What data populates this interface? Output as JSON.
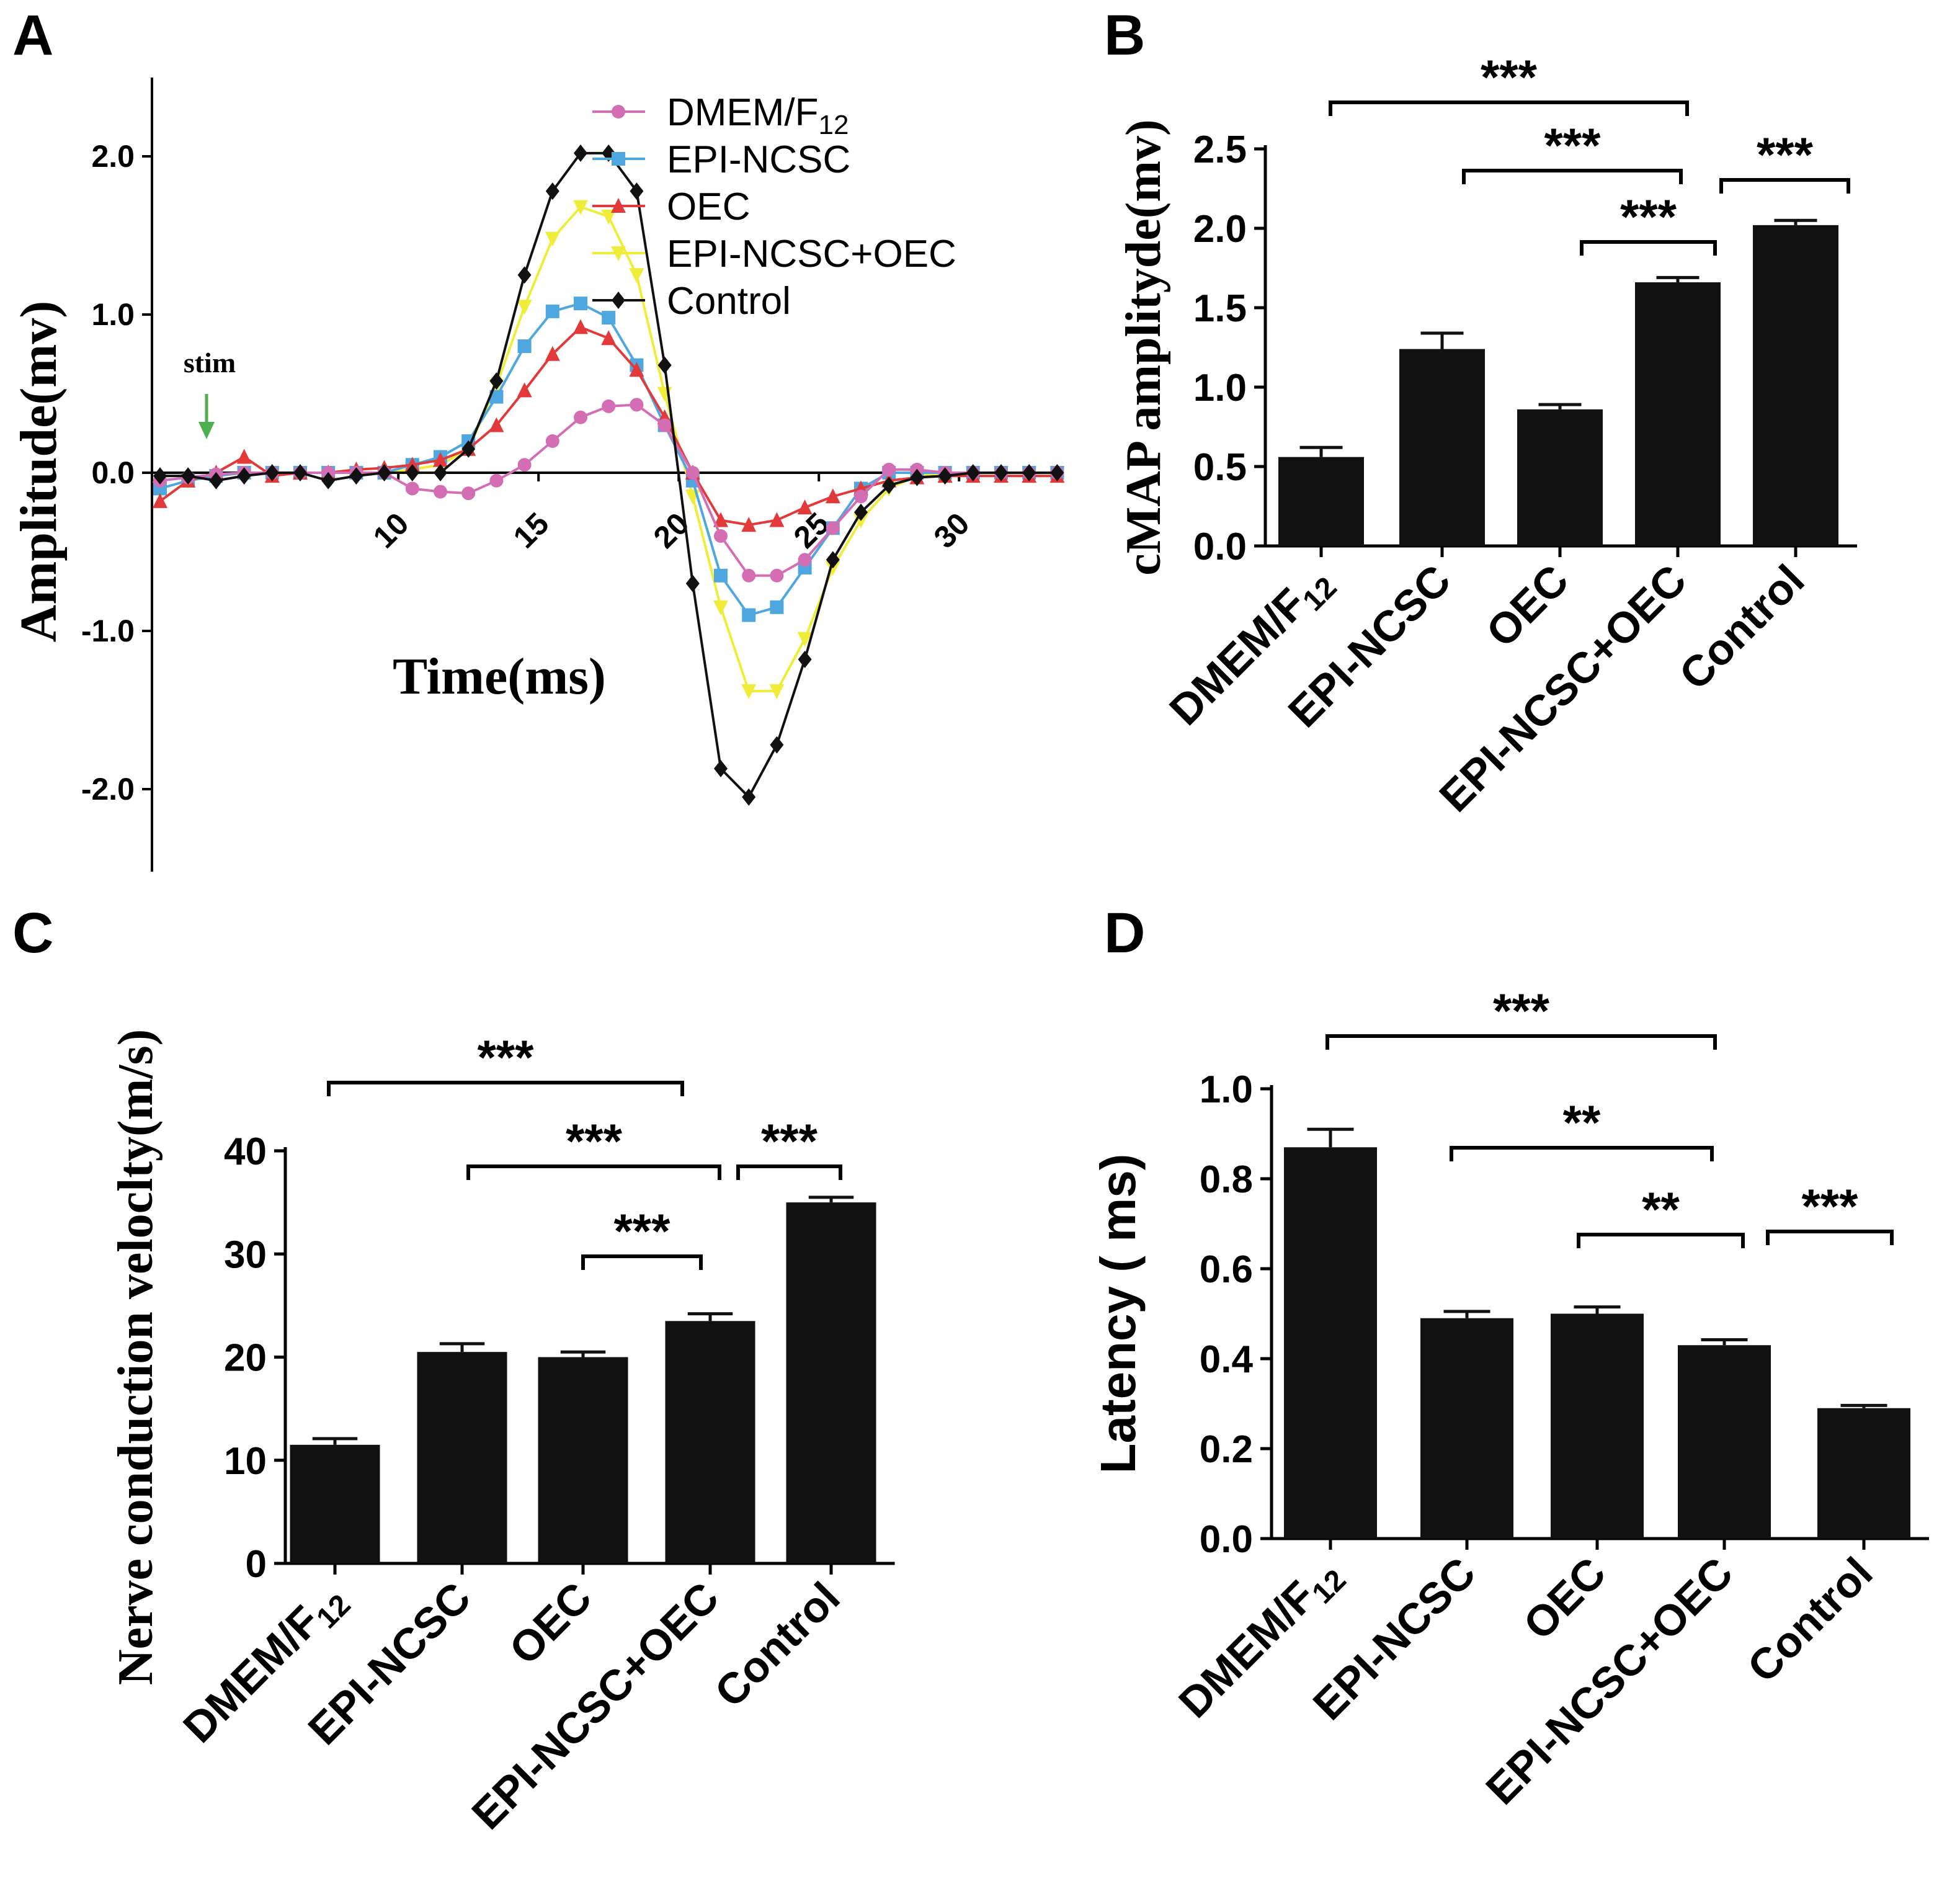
{
  "chart_data": [
    {
      "panel": "A",
      "type": "line",
      "xlabel": "Time(ms)",
      "ylabel": "Amplitude(mv)",
      "x_ticks": [
        "10",
        "15",
        "20",
        "25",
        "30"
      ],
      "y_ticks": [
        "2.0",
        "1.0",
        "0.0",
        "-1.0",
        "-2.0"
      ],
      "ylim": [
        -2.5,
        2.5
      ],
      "xlim": [
        1.5,
        34
      ],
      "annotation": "stim",
      "x": [
        1.5,
        2.5,
        3.5,
        4.5,
        5.5,
        6.5,
        7.5,
        8.5,
        9.5,
        10.5,
        11.5,
        12.5,
        13.5,
        14.5,
        15.5,
        16.5,
        17.5,
        18.5,
        19.5,
        20.5,
        21.5,
        22.5,
        23.5,
        24.5,
        25.5,
        26.5,
        27.5,
        28.5,
        29.5,
        30.5,
        31.5,
        32.5,
        33.5
      ],
      "series": [
        {
          "name": "DMEM/F",
          "sub": "12",
          "color": "#d46eb4",
          "marker": "circle",
          "values": [
            -0.05,
            -0.03,
            -0.01,
            0.0,
            0.0,
            0.0,
            0.0,
            0.0,
            0.0,
            -0.1,
            -0.12,
            -0.13,
            -0.05,
            0.05,
            0.2,
            0.35,
            0.42,
            0.43,
            0.3,
            0.0,
            -0.4,
            -0.65,
            -0.65,
            -0.55,
            -0.35,
            -0.15,
            0.02,
            0.02,
            0.0,
            0.0,
            0.0,
            0.0,
            0.0
          ]
        },
        {
          "name": "EPI-NCSC",
          "color": "#4ea8df",
          "marker": "square",
          "values": [
            -0.1,
            -0.05,
            -0.02,
            0.0,
            0.0,
            0.0,
            0.0,
            0.0,
            0.0,
            0.05,
            0.1,
            0.2,
            0.48,
            0.8,
            1.02,
            1.07,
            0.98,
            0.68,
            0.3,
            -0.05,
            -0.65,
            -0.9,
            -0.85,
            -0.6,
            -0.35,
            -0.1,
            0.0,
            0.0,
            0.0,
            0.0,
            0.0,
            0.0,
            0.0
          ]
        },
        {
          "name": "OEC",
          "color": "#e23a3a",
          "marker": "triangle",
          "values": [
            -0.18,
            -0.05,
            0.0,
            0.1,
            -0.02,
            0.0,
            0.0,
            0.02,
            0.03,
            0.05,
            0.08,
            0.15,
            0.3,
            0.52,
            0.75,
            0.92,
            0.85,
            0.65,
            0.35,
            0.0,
            -0.3,
            -0.33,
            -0.3,
            -0.22,
            -0.15,
            -0.1,
            -0.05,
            -0.03,
            -0.02,
            -0.02,
            -0.02,
            -0.02,
            -0.02
          ]
        },
        {
          "name": "EPI-NCSC+OEC",
          "color": "#f0ec3a",
          "marker": "triangle-down",
          "values": [
            -0.1,
            -0.05,
            -0.02,
            0.0,
            0.0,
            0.0,
            0.0,
            0.0,
            0.0,
            0.02,
            0.05,
            0.15,
            0.55,
            1.05,
            1.48,
            1.68,
            1.62,
            1.25,
            0.5,
            -0.15,
            -0.85,
            -1.38,
            -1.38,
            -1.05,
            -0.6,
            -0.3,
            -0.1,
            -0.02,
            0.0,
            0.0,
            0.0,
            0.0,
            0.0
          ]
        },
        {
          "name": "Control",
          "color": "#111111",
          "marker": "diamond",
          "values": [
            -0.02,
            -0.02,
            -0.05,
            -0.02,
            0.0,
            0.0,
            -0.05,
            -0.02,
            0.0,
            0.0,
            0.0,
            0.15,
            0.58,
            1.25,
            1.78,
            2.02,
            2.02,
            1.78,
            0.68,
            -0.7,
            -1.87,
            -2.05,
            -1.72,
            -1.18,
            -0.55,
            -0.25,
            -0.08,
            -0.03,
            -0.02,
            0.0,
            0.0,
            0.0,
            0.0
          ]
        }
      ]
    },
    {
      "panel": "B",
      "type": "bar",
      "ylabel": "cMAP amplityde(mv)",
      "categories": [
        "DMEM/F",
        "EPI-NCSC",
        "OEC",
        "EPI-NCSC+OEC",
        "Control"
      ],
      "category_sub": [
        "12",
        "",
        "",
        "",
        ""
      ],
      "values": [
        0.56,
        1.24,
        0.86,
        1.66,
        2.02
      ],
      "errors": [
        0.06,
        0.1,
        0.03,
        0.03,
        0.03
      ],
      "ylim": [
        0,
        2.5
      ],
      "y_ticks": [
        "0.0",
        "0.5",
        "1.0",
        "1.5",
        "2.0",
        "2.5"
      ],
      "significance": [
        {
          "from": 0,
          "to": 3,
          "label": "***"
        },
        {
          "from": 1,
          "to": 3,
          "label": "***"
        },
        {
          "from": 2,
          "to": 3,
          "label": "***"
        },
        {
          "from": 3,
          "to": 4,
          "label": "***"
        }
      ]
    },
    {
      "panel": "C",
      "type": "bar",
      "ylabel": "Nerve conduction veloclty(m/s)",
      "categories": [
        "DMEM/F",
        "EPI-NCSC",
        "OEC",
        "EPI-NCSC+OEC",
        "Control"
      ],
      "category_sub": [
        "12",
        "",
        "",
        "",
        ""
      ],
      "values": [
        11.5,
        20.5,
        20.0,
        23.5,
        35.0
      ],
      "errors": [
        0.6,
        0.8,
        0.5,
        0.7,
        0.5
      ],
      "ylim": [
        0,
        40
      ],
      "y_ticks": [
        "0",
        "10",
        "20",
        "30",
        "40"
      ],
      "significance": [
        {
          "from": 0,
          "to": 3,
          "label": "***"
        },
        {
          "from": 1,
          "to": 3,
          "label": "***"
        },
        {
          "from": 2,
          "to": 3,
          "label": "***"
        },
        {
          "from": 3,
          "to": 4,
          "label": "***"
        }
      ]
    },
    {
      "panel": "D",
      "type": "bar",
      "ylabel": "Latency ( ms)",
      "categories": [
        "DMEM/F",
        "EPI-NCSC",
        "OEC",
        "EPI-NCSC+OEC",
        "Control"
      ],
      "category_sub": [
        "12",
        "",
        "",
        "",
        ""
      ],
      "values": [
        0.87,
        0.49,
        0.5,
        0.43,
        0.29
      ],
      "errors": [
        0.04,
        0.015,
        0.015,
        0.012,
        0.006
      ],
      "ylim": [
        0,
        1.0
      ],
      "y_ticks": [
        "0.0",
        "0.2",
        "0.4",
        "0.6",
        "0.8",
        "1.0"
      ],
      "significance": [
        {
          "from": 0,
          "to": 3,
          "label": "***"
        },
        {
          "from": 1,
          "to": 3,
          "label": "**"
        },
        {
          "from": 2,
          "to": 3,
          "label": "**"
        },
        {
          "from": 3,
          "to": 4,
          "label": "***"
        }
      ]
    }
  ]
}
